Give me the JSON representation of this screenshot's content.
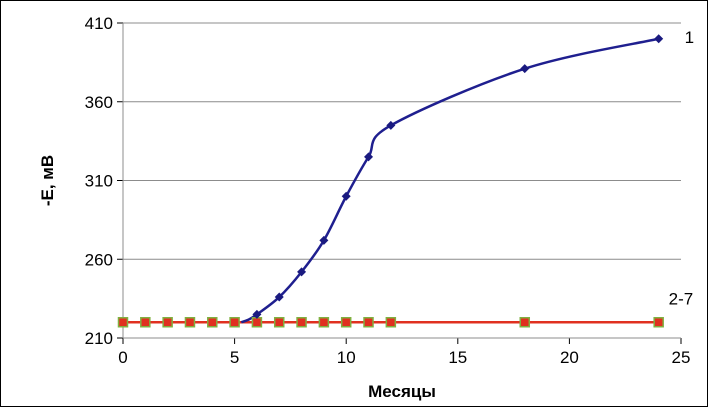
{
  "chart_data": {
    "type": "line",
    "title": "",
    "xlabel": "Месяцы",
    "ylabel": "-E, мВ",
    "xlim": [
      0,
      25
    ],
    "ylim": [
      210,
      410
    ],
    "xticks": [
      "0",
      "5",
      "10",
      "15",
      "20",
      "25"
    ],
    "yticks": [
      "210",
      "260",
      "310",
      "360",
      "410"
    ],
    "grid": "horizontal",
    "legend": "none",
    "series": [
      {
        "name": "1",
        "color": "#1f1f8f",
        "marker_color": "#1a1a80",
        "marker": "diamond",
        "smooth": true,
        "x": [
          6,
          7,
          8,
          9,
          10,
          11,
          12,
          18,
          24
        ],
        "y": [
          225,
          236,
          252,
          272,
          300,
          325,
          345,
          381,
          400
        ]
      },
      {
        "name": "2-7",
        "color": "#e03020",
        "marker_color": "#e03020",
        "marker_edge": "#80b040",
        "marker": "square",
        "smooth": false,
        "x": [
          0,
          1,
          2,
          3,
          4,
          5,
          6,
          7,
          8,
          9,
          10,
          11,
          12,
          18,
          24
        ],
        "y": [
          220,
          220,
          220,
          220,
          220,
          220,
          220,
          220,
          220,
          220,
          220,
          220,
          220,
          220,
          220
        ]
      }
    ],
    "partial_curve": {
      "x": [
        5.3,
        5.6,
        6
      ],
      "y": [
        220,
        221.5,
        225
      ]
    }
  }
}
